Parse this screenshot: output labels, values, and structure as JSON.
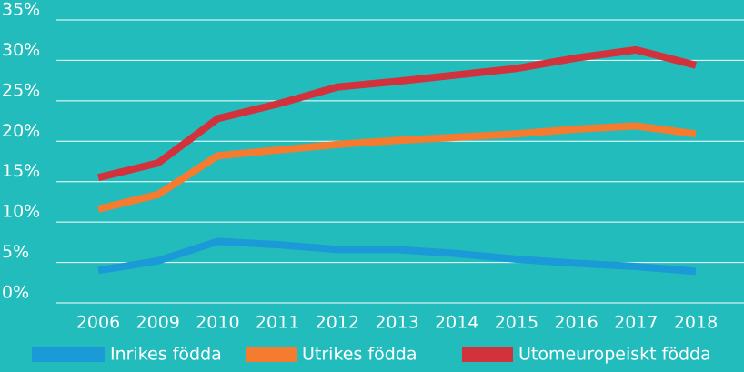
{
  "chart_data": {
    "type": "line",
    "categories": [
      "2006",
      "2009",
      "2010",
      "2011",
      "2012",
      "2013",
      "2014",
      "2015",
      "2016",
      "2017",
      "2018"
    ],
    "series": [
      {
        "name": "Inrikes födda",
        "color": "#1b9ad8",
        "values": [
          4.0,
          5.2,
          7.6,
          7.2,
          6.6,
          6.6,
          6.1,
          5.4,
          4.9,
          4.5,
          3.9
        ]
      },
      {
        "name": "Utrikes födda",
        "color": "#f47b2f",
        "values": [
          11.6,
          13.4,
          18.2,
          18.9,
          19.6,
          20.1,
          20.5,
          20.9,
          21.5,
          21.9,
          20.9
        ]
      },
      {
        "name": "Utomeuropeiskt födda",
        "color": "#d2323c",
        "values": [
          15.5,
          17.3,
          22.8,
          24.6,
          26.7,
          27.4,
          28.2,
          29.0,
          30.3,
          31.3,
          29.4
        ]
      }
    ],
    "ylim": [
      0,
      35
    ],
    "yticks": [
      {
        "value": 0,
        "label": "0%"
      },
      {
        "value": 5,
        "label": "5%"
      },
      {
        "value": 10,
        "label": "10%"
      },
      {
        "value": 15,
        "label": "15%"
      },
      {
        "value": 20,
        "label": "20%"
      },
      {
        "value": 25,
        "label": "25%"
      },
      {
        "value": 30,
        "label": "30%"
      },
      {
        "value": 35,
        "label": "35%"
      }
    ],
    "grid": true,
    "legend": "bottom",
    "background": "#22bcbc"
  }
}
